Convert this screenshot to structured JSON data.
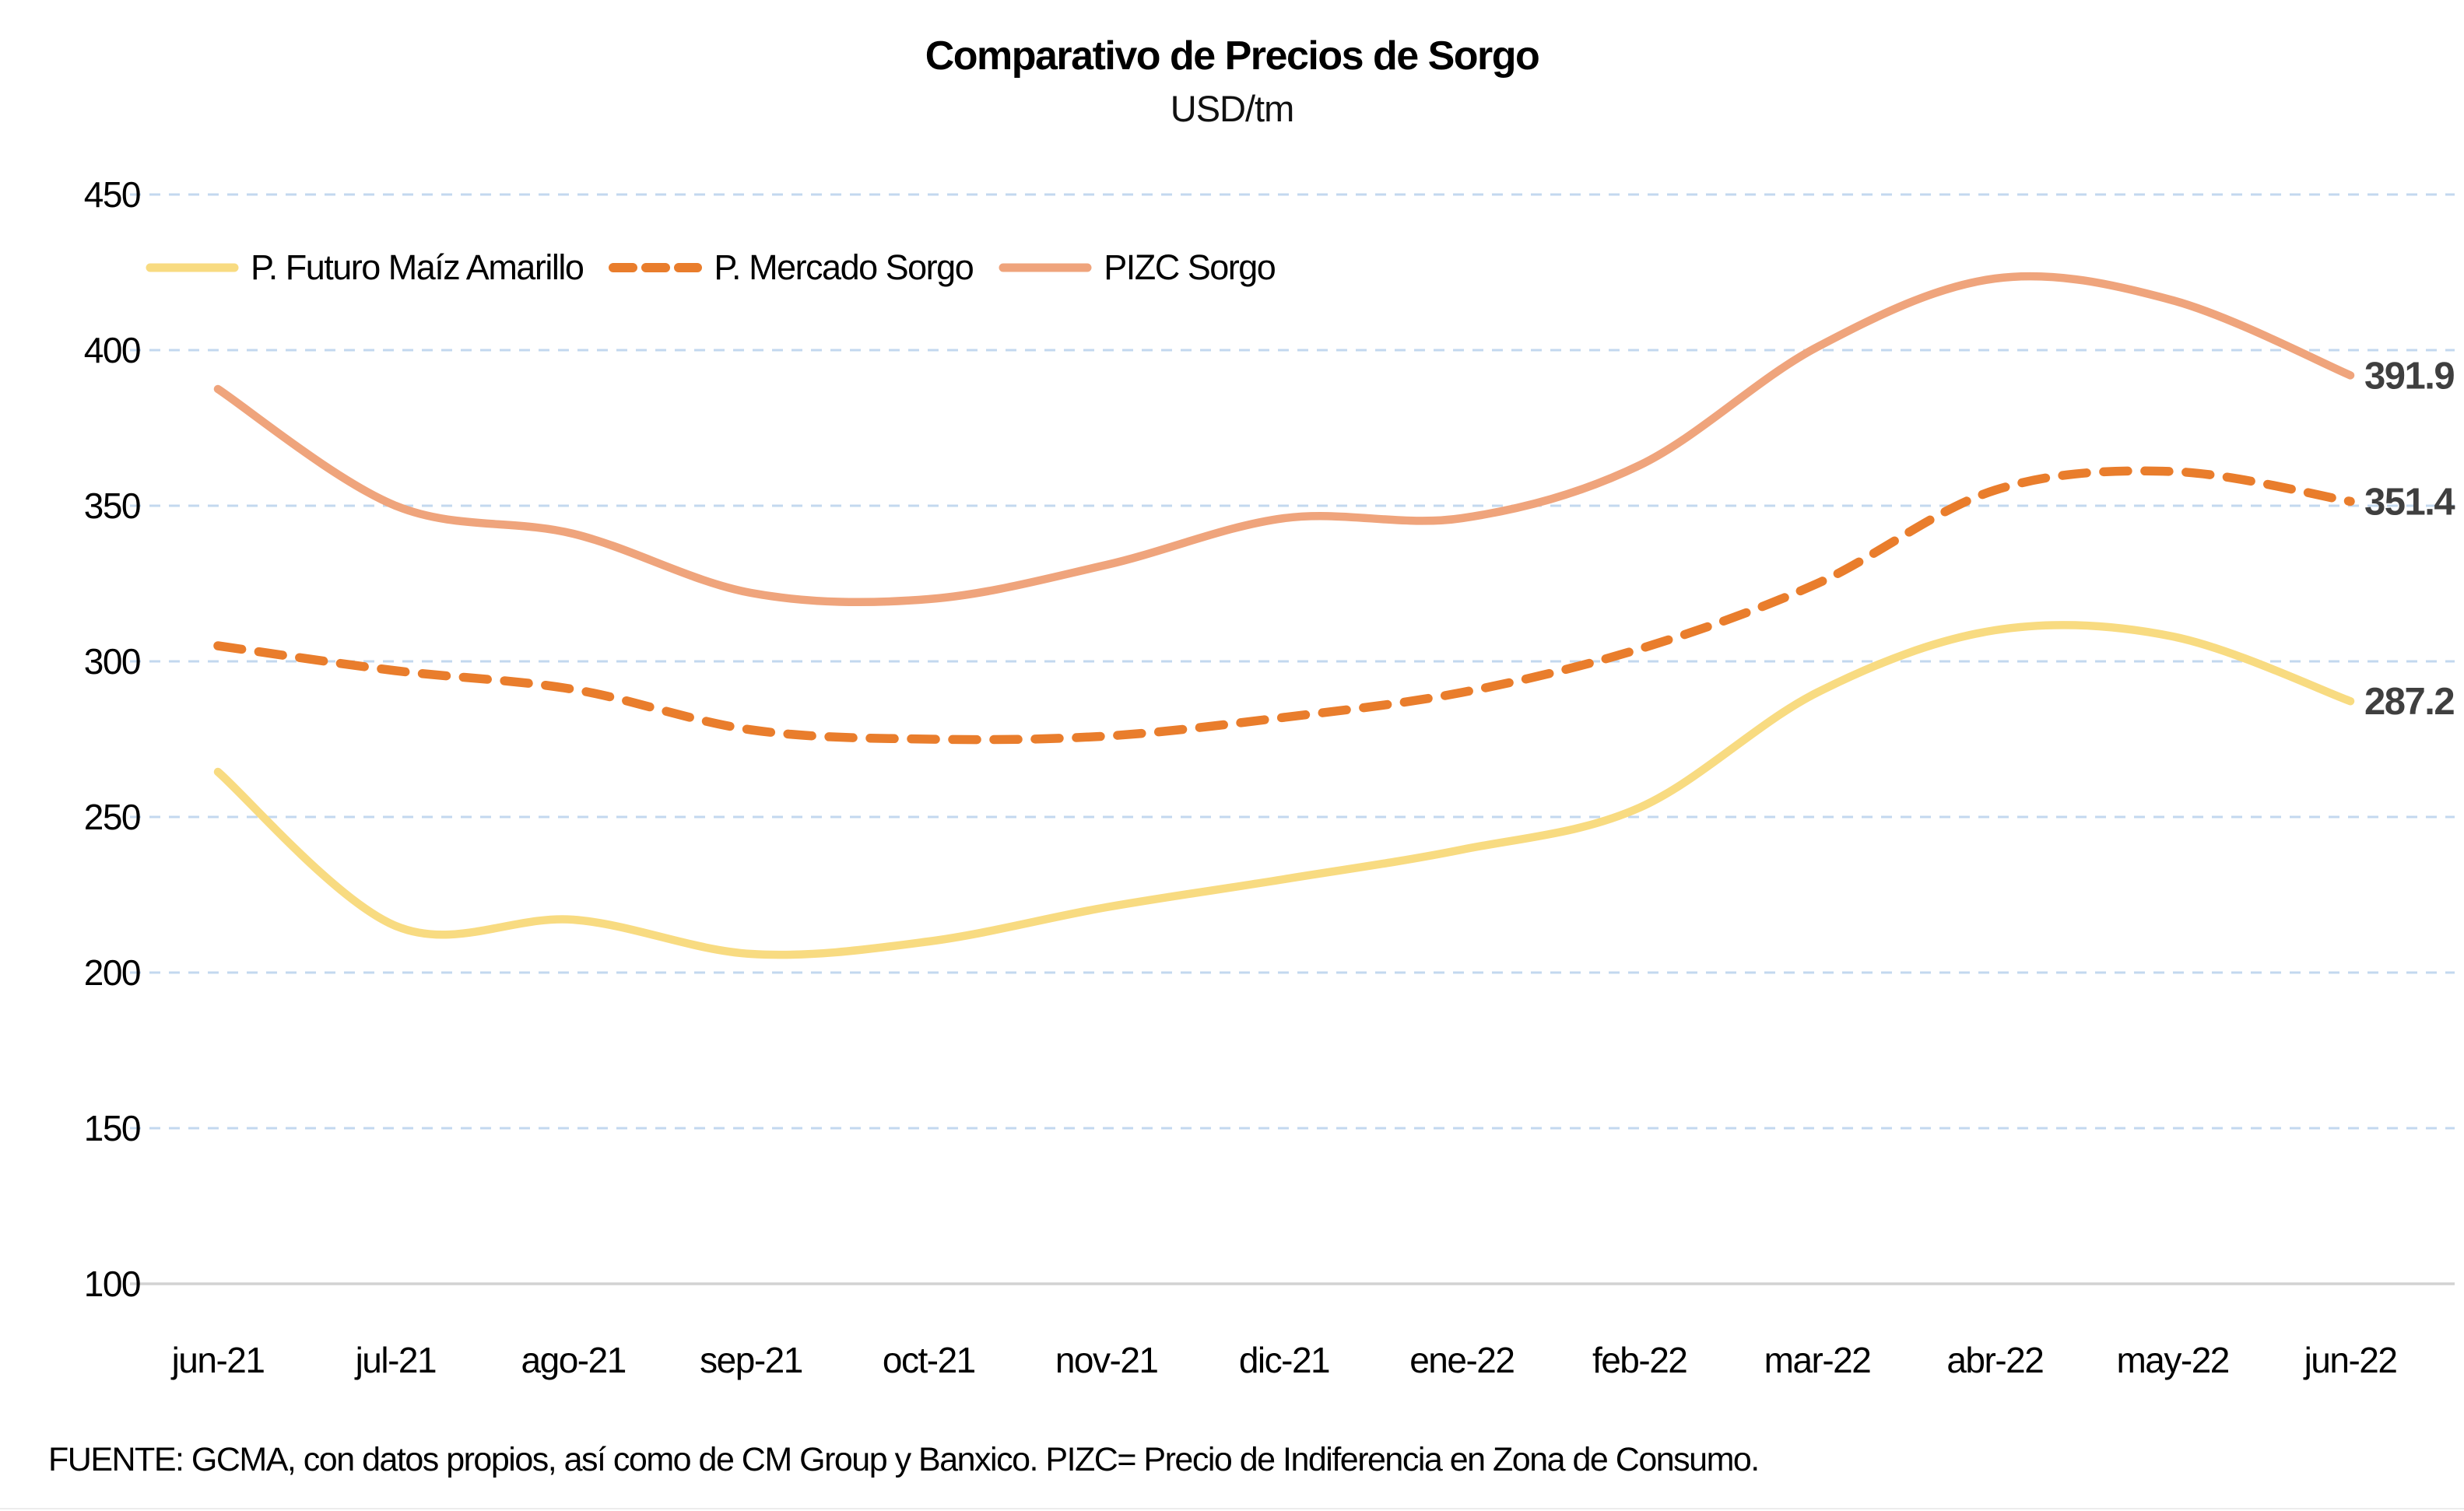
{
  "title": "Comparativo de Precios de Sorgo",
  "subtitle": "USD/tm",
  "footer": "FUENTE: GCMA, con datos propios, así como de CM Group y Banxico. PIZC= Precio de Indiferencia en Zona de Consumo.",
  "colors": {
    "futuro_maiz": "#F8DB81",
    "mercado_sorgo": "#E97D2C",
    "pizc_sorgo": "#EFA47C",
    "gridline": "#C3D8EF",
    "axis_line": "#D2D2D2",
    "end_label": "#3F3F3F",
    "tick_label": "#000000"
  },
  "chart_data": {
    "type": "line",
    "title": "Comparativo de Precios de Sorgo",
    "subtitle": "USD/tm",
    "categories": [
      "jun-21",
      "jul-21",
      "ago-21",
      "sep-21",
      "oct-21",
      "nov-21",
      "dic-21",
      "ene-22",
      "feb-22",
      "mar-22",
      "abr-22",
      "may-22",
      "jun-22"
    ],
    "series": [
      {
        "name": "P. Futuro Maíz Amarillo",
        "color": "#F8DB81",
        "dashed": false,
        "end_label": "287.2",
        "values": [
          264.5,
          215,
          217,
          206,
          210,
          221,
          230,
          239.5,
          253,
          290,
          310,
          308,
          287.2
        ]
      },
      {
        "name": "P. Mercado Sorgo",
        "color": "#E97D2C",
        "dashed": true,
        "end_label": "351.4",
        "values": [
          305,
          297,
          291,
          278,
          275,
          276,
          282,
          290,
          304,
          325,
          355,
          361,
          351.4
        ]
      },
      {
        "name": "PIZC Sorgo",
        "color": "#EFA47C",
        "dashed": false,
        "end_label": "391.9",
        "values": [
          387.5,
          350,
          341,
          322,
          320,
          331,
          346,
          346,
          363,
          401,
          423,
          416,
          391.9
        ]
      }
    ],
    "ylim": [
      100,
      450
    ],
    "yticks": [
      450,
      400,
      350,
      300,
      250,
      200,
      150,
      100
    ],
    "grid": "horizontal dashed, solid baseline at 100",
    "legend_position": "top-left inside plot",
    "ylabel": "",
    "xlabel": ""
  }
}
